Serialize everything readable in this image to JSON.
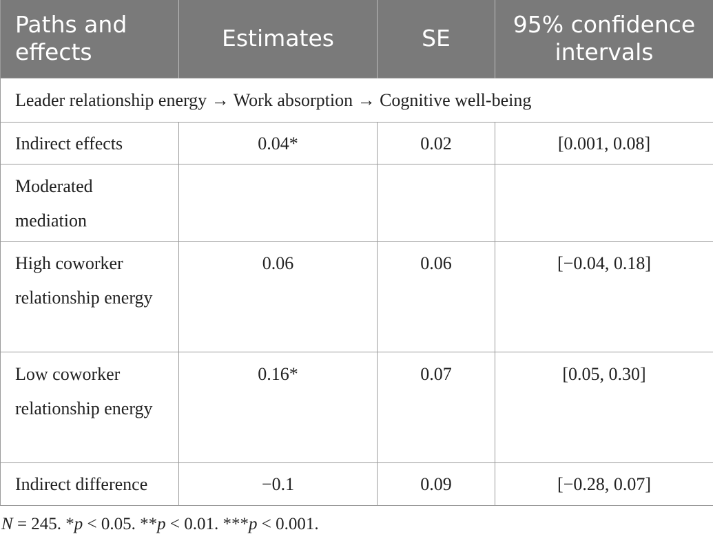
{
  "table": {
    "headers": [
      "Paths and effects",
      "Estimates",
      "SE",
      "95% confidence intervals"
    ],
    "section_label": "Leader relationship energy → Work absorption → Cognitive well-being",
    "rows": [
      {
        "label": "Indirect effects",
        "estimate": "0.04*",
        "se": "0.02",
        "ci": "[0.001, 0.08]"
      },
      {
        "label": "Moderated mediation",
        "estimate": "",
        "se": "",
        "ci": ""
      },
      {
        "label": "High coworker relationship energy",
        "estimate": "0.06",
        "se": "0.06",
        "ci": "[−0.04, 0.18]"
      },
      {
        "label": "Low coworker relationship energy",
        "estimate": "0.16*",
        "se": "0.07",
        "ci": "[0.05, 0.30]"
      },
      {
        "label": "Indirect difference",
        "estimate": "−0.1",
        "se": "0.09",
        "ci": "[−0.28, 0.07]"
      }
    ]
  },
  "footnote": {
    "n_label": "N",
    "n_text": " = 245. *",
    "p1": "p",
    "t1": " < 0.05. **",
    "p2": "p",
    "t2": " < 0.01. ***",
    "p3": "p",
    "t3": " < 0.001."
  }
}
